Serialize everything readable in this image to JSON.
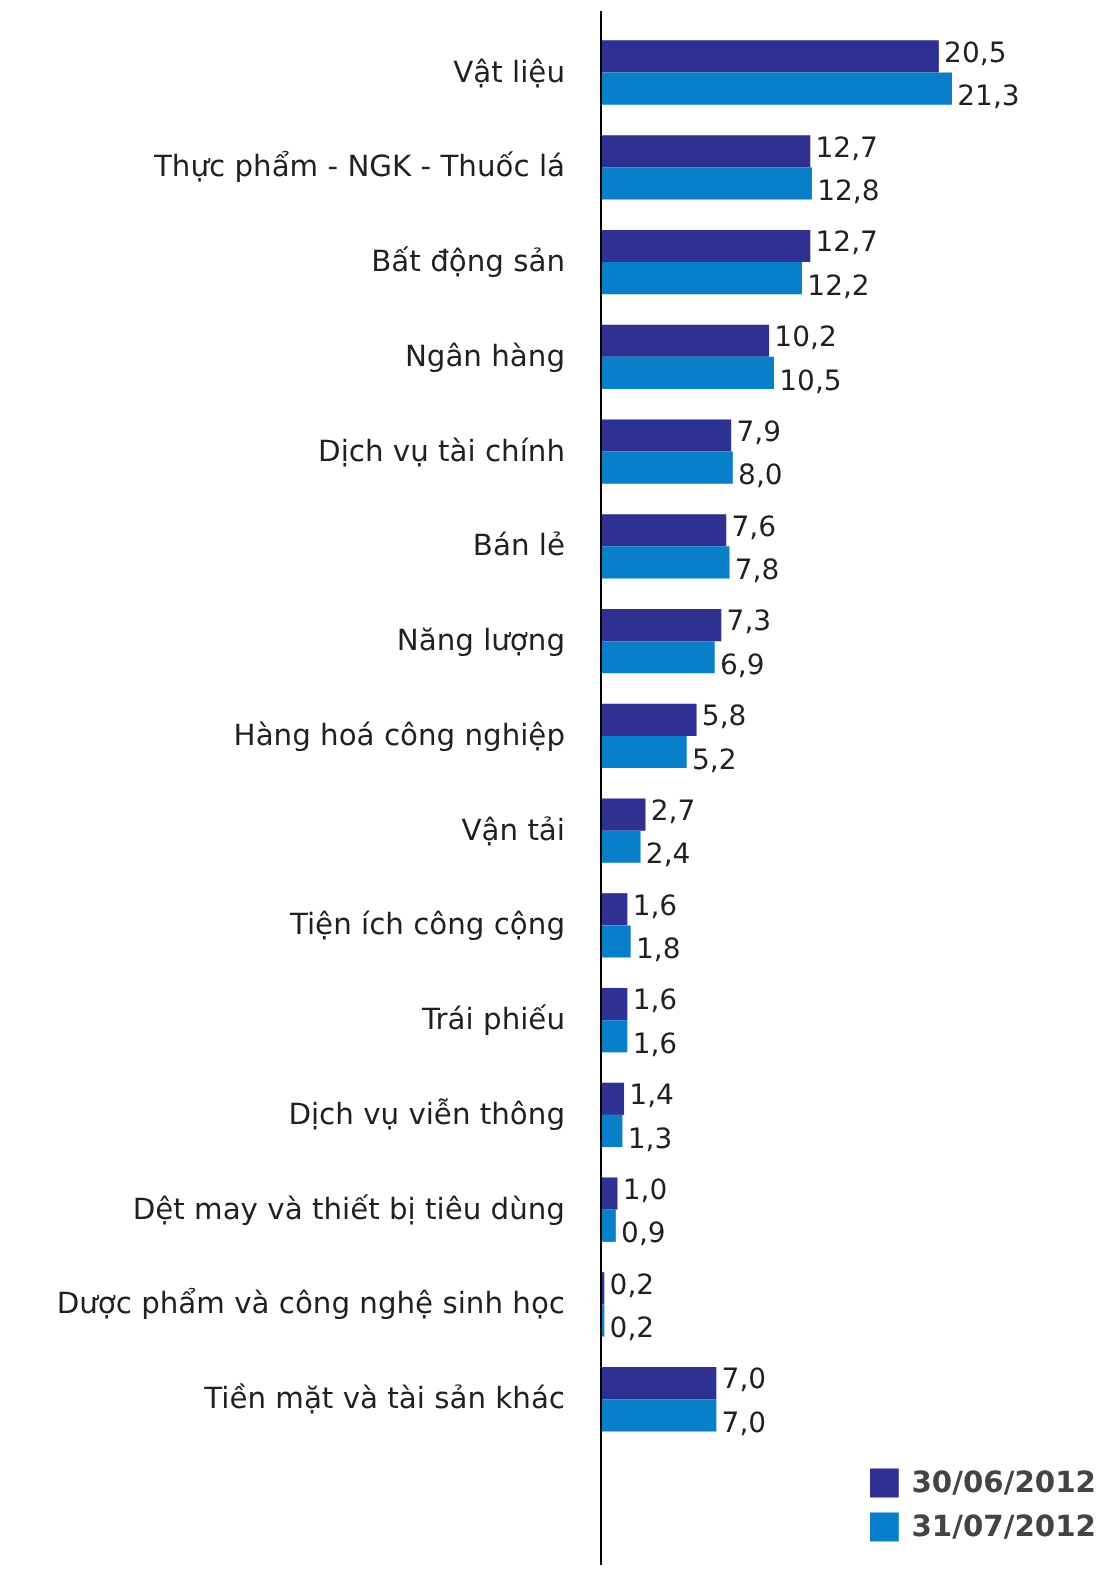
{
  "chart_data": {
    "type": "bar",
    "orientation": "horizontal",
    "categories": [
      "Vật liệu",
      "Thực phẩm - NGK - Thuốc lá",
      "Bất động sản",
      "Ngân hàng",
      "Dịch vụ tài chính",
      "Bán lẻ",
      "Năng lượng",
      "Hàng hoá công nghiệp",
      "Vận tải",
      "Tiện ích công cộng",
      "Trái phiếu",
      "Dịch vụ viễn thông",
      "Dệt may và thiết bị tiêu dùng",
      "Dược phẩm và công nghệ sinh học",
      "Tiền mặt và tài sản khác"
    ],
    "series": [
      {
        "name": "30/06/2012",
        "color": "#2e3192",
        "values": [
          20.5,
          12.7,
          12.7,
          10.2,
          7.9,
          7.6,
          7.3,
          5.8,
          2.7,
          1.6,
          1.6,
          1.4,
          1.0,
          0.2,
          7.0
        ],
        "value_labels": [
          "20,5",
          "12,7",
          "12,7",
          "10,2",
          "7,9",
          "7,6",
          "7,3",
          "5,8",
          "2,7",
          "1,6",
          "1,6",
          "1,4",
          "1,0",
          "0,2",
          "7,0"
        ]
      },
      {
        "name": "31/07/2012",
        "color": "#0a7fc9",
        "values": [
          21.3,
          12.8,
          12.2,
          10.5,
          8.0,
          7.8,
          6.9,
          5.2,
          2.4,
          1.8,
          1.6,
          1.3,
          0.9,
          0.2,
          7.0
        ],
        "value_labels": [
          "21,3",
          "12,8",
          "12,2",
          "10,5",
          "8,0",
          "7,8",
          "6,9",
          "5,2",
          "2,4",
          "1,8",
          "1,6",
          "1,3",
          "0,9",
          "0,2",
          "7,0"
        ]
      }
    ],
    "legend": "bottom right"
  }
}
